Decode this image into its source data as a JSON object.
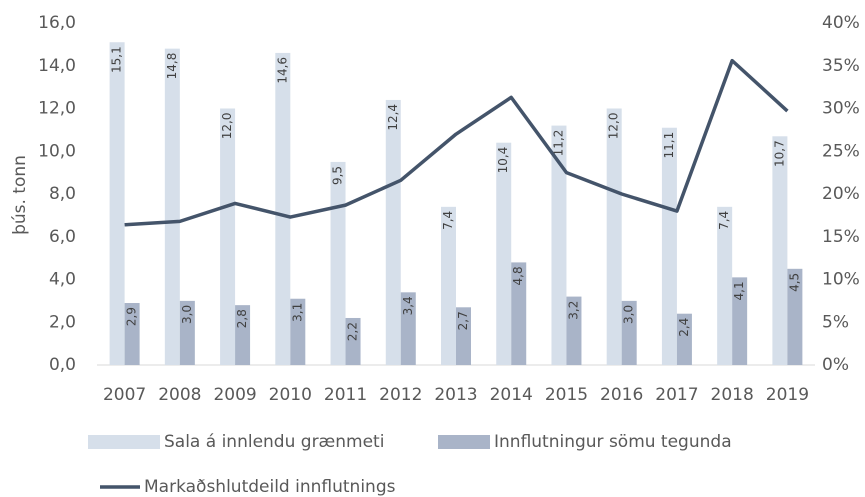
{
  "chart_data": {
    "type": "bar",
    "y_label": "þús. tonn",
    "categories": [
      "2007",
      "2008",
      "2009",
      "2010",
      "2011",
      "2012",
      "2013",
      "2014",
      "2015",
      "2016",
      "2017",
      "2018",
      "2019"
    ],
    "series": [
      {
        "name": "Sala á innlendu grænmeti",
        "color": "#d6dfea",
        "values": [
          15.1,
          14.8,
          12.0,
          14.6,
          9.5,
          12.4,
          7.4,
          10.4,
          11.2,
          12.0,
          11.1,
          7.4,
          10.7
        ],
        "value_labels": [
          "15,1",
          "14,8",
          "12,0",
          "14,6",
          "9,5",
          "12,4",
          "7,4",
          "10,4",
          "11,2",
          "12,0",
          "11,1",
          "7,4",
          "10,7"
        ]
      },
      {
        "name": "Innflutningur sömu tegunda",
        "color": "#a9b4c8",
        "values": [
          2.9,
          3.0,
          2.8,
          3.1,
          2.2,
          3.4,
          2.7,
          4.8,
          3.2,
          3.0,
          2.4,
          4.1,
          4.5
        ],
        "value_labels": [
          "2,9",
          "3,0",
          "2,8",
          "3,1",
          "2,2",
          "3,4",
          "2,7",
          "4,8",
          "3,2",
          "3,0",
          "2,4",
          "4,1",
          "4,5"
        ]
      },
      {
        "name": "Markaðshlutdeild innflutnings",
        "color": "#44546a",
        "type": "line",
        "axis": "y2",
        "values": [
          16.4,
          16.8,
          18.9,
          17.3,
          18.7,
          21.6,
          27.0,
          31.3,
          22.5,
          20.0,
          18.0,
          35.6,
          29.7
        ]
      }
    ],
    "ylim": [
      0,
      16
    ],
    "yticks": [
      {
        "value": 0,
        "label": "0,0"
      },
      {
        "value": 2,
        "label": "2,0"
      },
      {
        "value": 4,
        "label": "4,0"
      },
      {
        "value": 6,
        "label": "6,0"
      },
      {
        "value": 8,
        "label": "8,0"
      },
      {
        "value": 10,
        "label": "10,0"
      },
      {
        "value": 12,
        "label": "12,0"
      },
      {
        "value": 14,
        "label": "14,0"
      },
      {
        "value": 16,
        "label": "16,0"
      }
    ],
    "y2lim": [
      0,
      40
    ],
    "y2ticks": [
      {
        "value": 0,
        "label": "0%"
      },
      {
        "value": 5,
        "label": "5%"
      },
      {
        "value": 10,
        "label": "10%"
      },
      {
        "value": 15,
        "label": "15%"
      },
      {
        "value": 20,
        "label": "20%"
      },
      {
        "value": 25,
        "label": "25%"
      },
      {
        "value": 30,
        "label": "30%"
      },
      {
        "value": 35,
        "label": "35%"
      },
      {
        "value": 40,
        "label": "40%"
      }
    ],
    "grid": false
  }
}
